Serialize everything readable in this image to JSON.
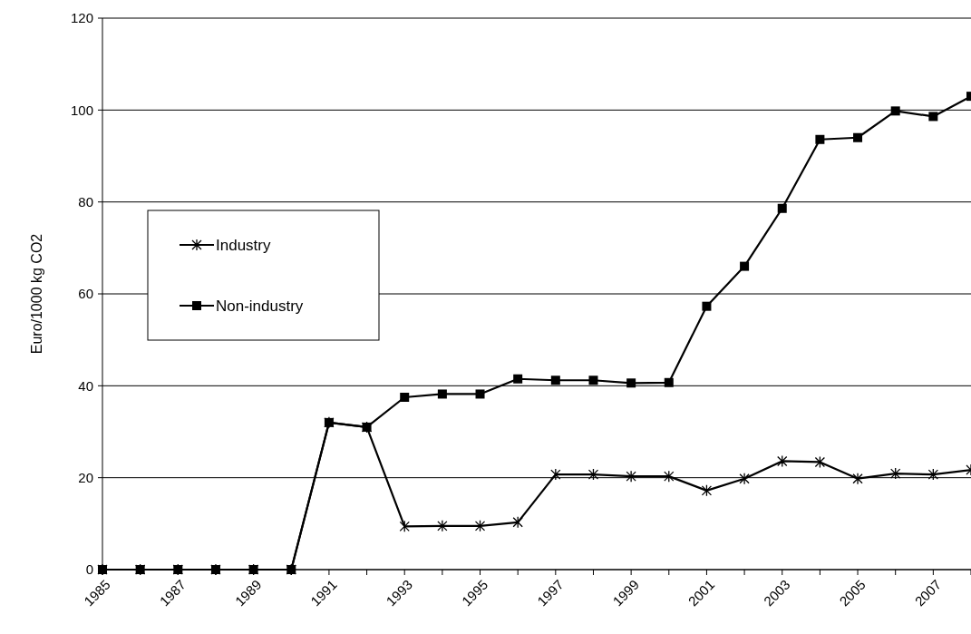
{
  "chart_data": {
    "type": "line",
    "ylabel": "Euro/1000 kg CO2",
    "x": [
      1985,
      1986,
      1987,
      1988,
      1989,
      1990,
      1991,
      1992,
      1993,
      1994,
      1995,
      1996,
      1997,
      1998,
      1999,
      2000,
      2001,
      2002,
      2003,
      2004,
      2005,
      2006,
      2007,
      2008
    ],
    "series": [
      {
        "name": "Industry",
        "color": "#000000",
        "marker": "cross",
        "values": [
          0,
          0,
          0,
          0,
          0,
          0,
          32,
          31,
          9.4,
          9.5,
          9.5,
          10.3,
          20.7,
          20.7,
          20.3,
          20.3,
          17.2,
          19.8,
          23.6,
          23.4,
          19.8,
          20.9,
          20.7,
          21.7
        ]
      },
      {
        "name": "Non-industry",
        "color": "#000000",
        "marker": "square",
        "values": [
          0,
          0,
          0,
          0,
          0,
          0,
          32,
          31,
          37.5,
          38.2,
          38.2,
          41.5,
          41.2,
          41.2,
          40.6,
          40.7,
          57.3,
          66,
          78.6,
          93.6,
          94,
          99.8,
          98.6,
          103
        ]
      }
    ],
    "xlim": [
      1985,
      2008
    ],
    "xticks": [
      1985,
      {
        "value": 1986,
        "label": null
      },
      1987,
      {
        "value": 1988,
        "label": null
      },
      1989,
      {
        "value": 1990,
        "label": null
      },
      1991,
      {
        "value": 1992,
        "label": null
      },
      1993,
      {
        "value": 1994,
        "label": null
      },
      1995,
      {
        "value": 1996,
        "label": null
      },
      1997,
      {
        "value": 1998,
        "label": null
      },
      1999,
      {
        "value": 2000,
        "label": null
      },
      2001,
      {
        "value": 2002,
        "label": null
      },
      2003,
      {
        "value": 2004,
        "label": null
      },
      2005,
      {
        "value": 2006,
        "label": null
      },
      2007,
      {
        "value": 2008,
        "label": null
      }
    ],
    "ylim": [
      0,
      120
    ],
    "yticks": [
      0,
      20,
      40,
      60,
      80,
      100,
      120
    ],
    "grid": "y",
    "legend": "left",
    "line_style": "solid"
  }
}
